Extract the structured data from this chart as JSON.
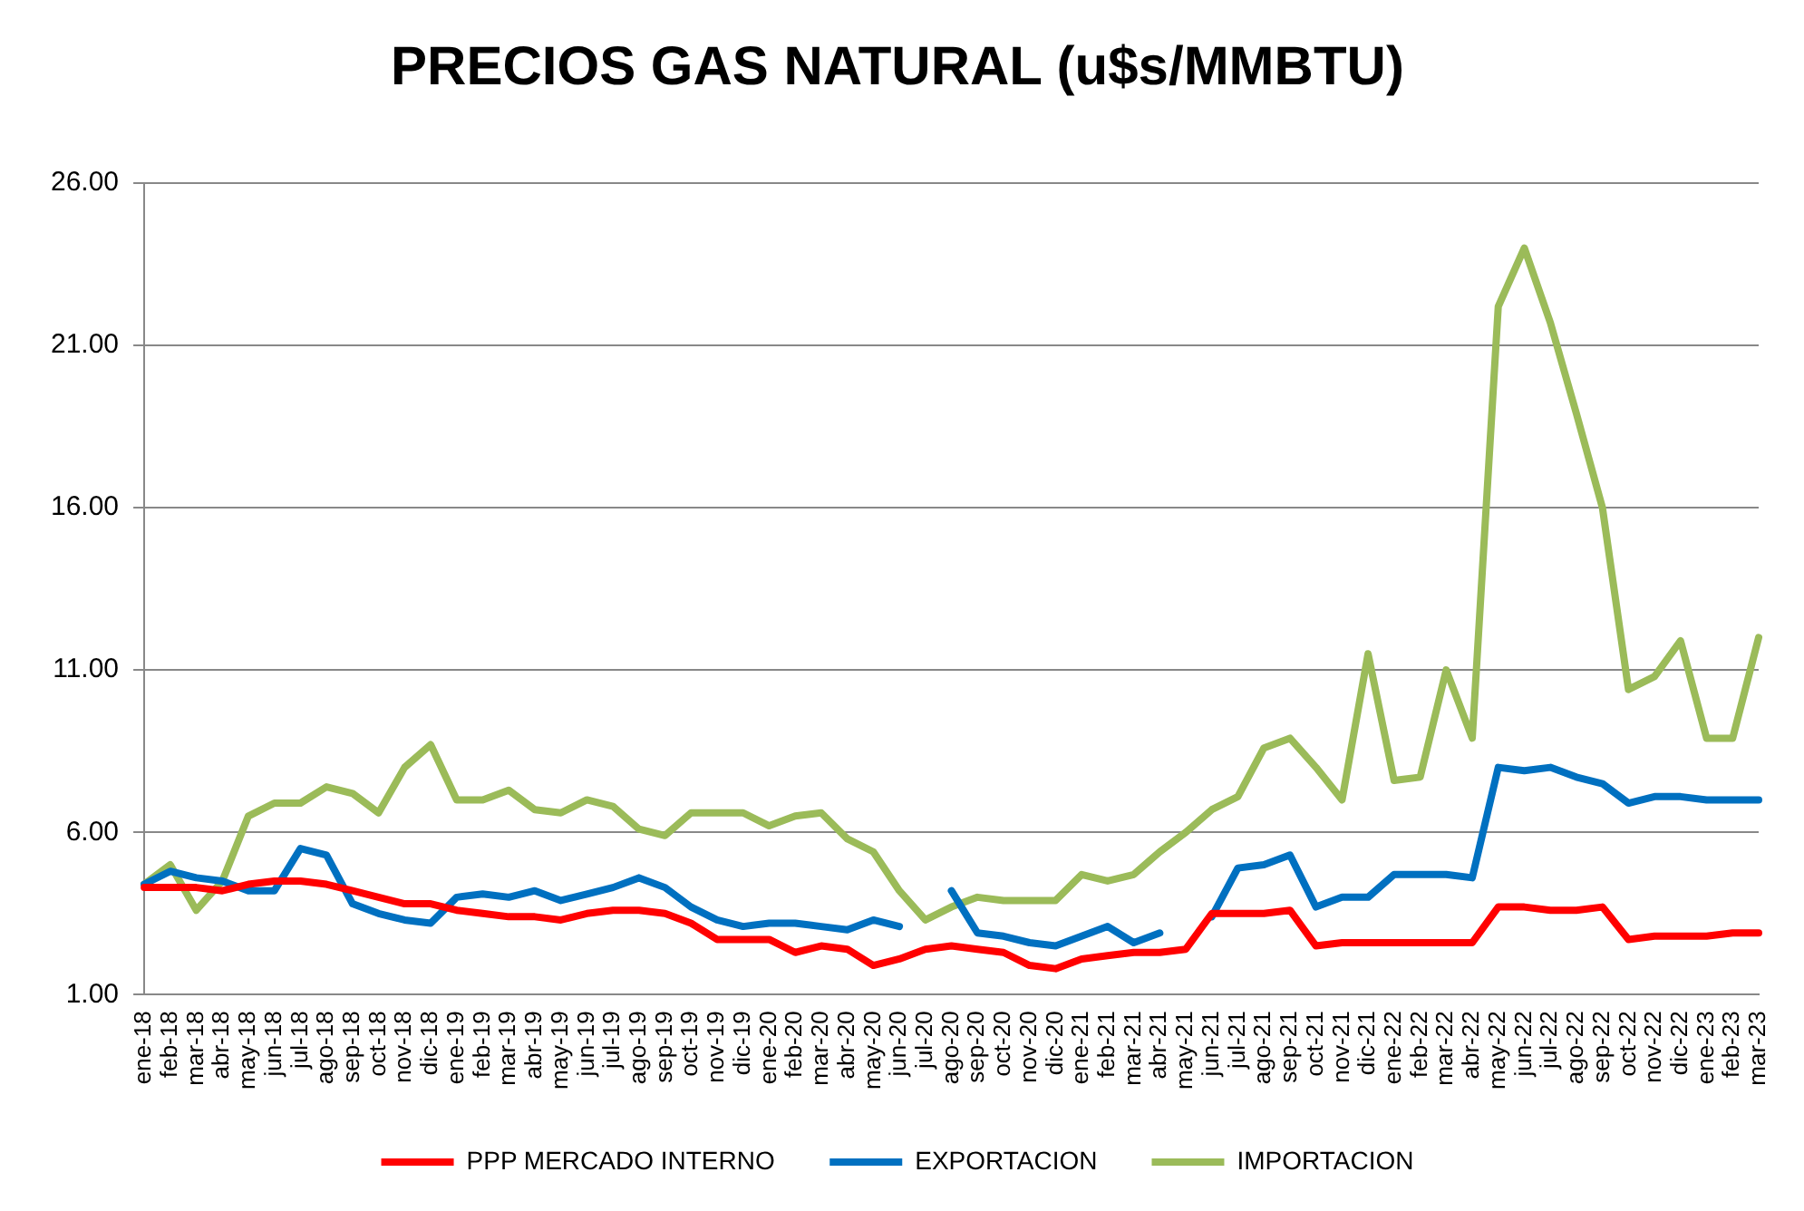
{
  "chart_data": {
    "type": "line",
    "title": "PRECIOS GAS NATURAL (u$s/MMBTU)",
    "categories": [
      "ene-18",
      "feb-18",
      "mar-18",
      "abr-18",
      "may-18",
      "jun-18",
      "jul-18",
      "ago-18",
      "sep-18",
      "oct-18",
      "nov-18",
      "dic-18",
      "ene-19",
      "feb-19",
      "mar-19",
      "abr-19",
      "may-19",
      "jun-19",
      "jul-19",
      "ago-19",
      "sep-19",
      "oct-19",
      "nov-19",
      "dic-19",
      "ene-20",
      "feb-20",
      "mar-20",
      "abr-20",
      "may-20",
      "jun-20",
      "jul-20",
      "ago-20",
      "sep-20",
      "oct-20",
      "nov-20",
      "dic-20",
      "ene-21",
      "feb-21",
      "mar-21",
      "abr-21",
      "may-21",
      "jun-21",
      "jul-21",
      "ago-21",
      "sep-21",
      "oct-21",
      "nov-21",
      "dic-21",
      "ene-22",
      "feb-22",
      "mar-22",
      "abr-22",
      "may-22",
      "jun-22",
      "jul-22",
      "ago-22",
      "sep-22",
      "oct-22",
      "nov-22",
      "dic-22",
      "ene-23",
      "feb-23",
      "mar-23"
    ],
    "series": [
      {
        "name": "PPP MERCADO INTERNO",
        "color": "#ff0000",
        "values": [
          4.3,
          4.3,
          4.3,
          4.2,
          4.4,
          4.5,
          4.5,
          4.4,
          4.2,
          4.0,
          3.8,
          3.8,
          3.6,
          3.5,
          3.4,
          3.4,
          3.3,
          3.5,
          3.6,
          3.6,
          3.5,
          3.2,
          2.7,
          2.7,
          2.7,
          2.3,
          2.5,
          2.4,
          1.9,
          2.1,
          2.4,
          2.5,
          2.4,
          2.3,
          1.9,
          1.8,
          2.1,
          2.2,
          2.3,
          2.3,
          2.4,
          3.5,
          3.5,
          3.5,
          3.6,
          2.5,
          2.6,
          2.6,
          2.6,
          2.6,
          2.6,
          2.6,
          3.7,
          3.7,
          3.6,
          3.6,
          3.7,
          2.7,
          2.8,
          2.8,
          2.8,
          2.9,
          2.9
        ]
      },
      {
        "name": "EXPORTACION",
        "color": "#0070c0",
        "values": [
          4.4,
          4.8,
          4.6,
          4.5,
          4.2,
          4.2,
          5.5,
          5.3,
          3.8,
          3.5,
          3.3,
          3.2,
          4.0,
          4.1,
          4.0,
          4.2,
          3.9,
          4.1,
          4.3,
          4.6,
          4.3,
          3.7,
          3.3,
          3.1,
          3.2,
          3.2,
          3.1,
          3.0,
          3.3,
          3.1,
          null,
          4.2,
          2.9,
          2.8,
          2.6,
          2.5,
          2.8,
          3.1,
          2.6,
          2.9,
          null,
          3.4,
          4.9,
          5.0,
          5.3,
          3.7,
          4.0,
          4.0,
          4.7,
          4.7,
          4.7,
          4.6,
          8.0,
          7.9,
          8.0,
          7.7,
          7.5,
          6.9,
          7.1,
          7.1,
          7.0,
          7.0,
          7.0
        ]
      },
      {
        "name": "IMPORTACION",
        "color": "#9bbb59",
        "values": [
          4.4,
          5.0,
          3.6,
          4.5,
          6.5,
          6.9,
          6.9,
          7.4,
          7.2,
          6.6,
          8.0,
          8.7,
          7.0,
          7.0,
          7.3,
          6.7,
          6.6,
          7.0,
          6.8,
          6.1,
          5.9,
          6.6,
          6.6,
          6.6,
          6.2,
          6.5,
          6.6,
          5.8,
          5.4,
          4.2,
          3.3,
          3.7,
          4.0,
          3.9,
          3.9,
          3.9,
          4.7,
          4.5,
          4.7,
          5.4,
          6.0,
          6.7,
          7.1,
          8.6,
          8.9,
          8.0,
          7.0,
          11.5,
          7.6,
          7.7,
          11.0,
          8.9,
          22.2,
          24.0,
          21.7,
          18.9,
          16.0,
          10.4,
          10.8,
          11.9,
          8.9,
          8.9,
          12.0
        ]
      }
    ],
    "ylim": [
      1,
      26
    ],
    "yticks": [
      {
        "value": 1,
        "label": "1.00"
      },
      {
        "value": 6,
        "label": "6.00"
      },
      {
        "value": 11,
        "label": "11.00"
      },
      {
        "value": 16,
        "label": "16.00"
      },
      {
        "value": 21,
        "label": "21.00"
      },
      {
        "value": 26,
        "label": "26.00"
      }
    ],
    "grid": "y",
    "legend": "bottom",
    "marker": "none",
    "line_style": "solid"
  }
}
